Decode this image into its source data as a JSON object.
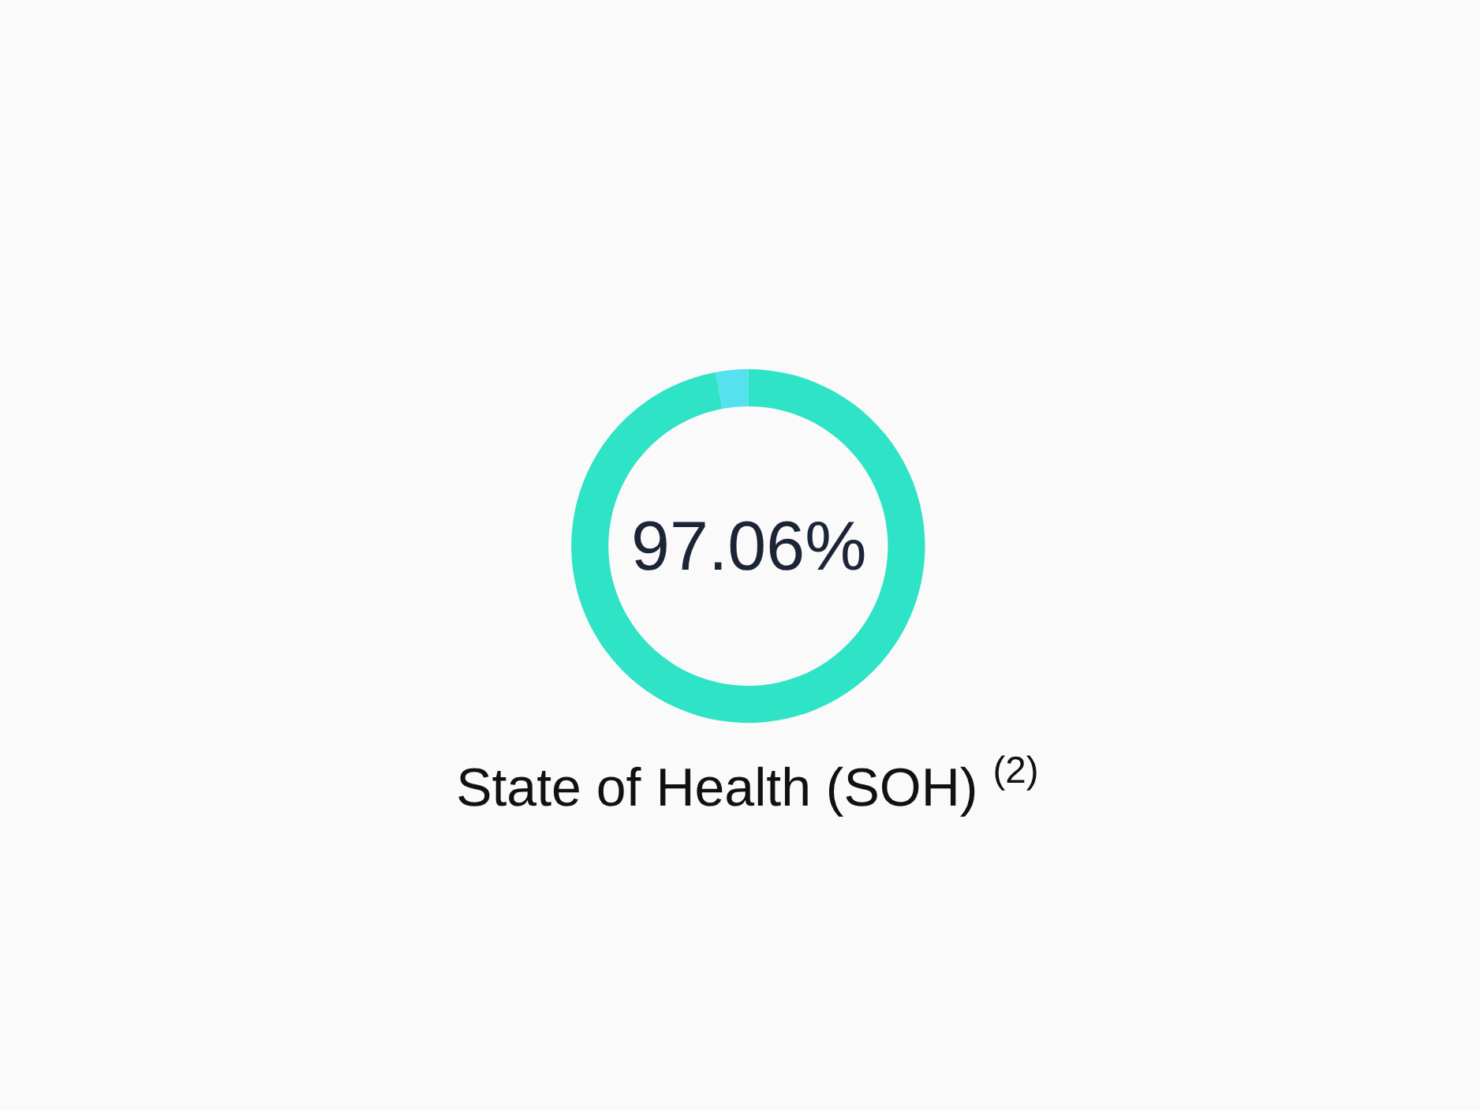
{
  "chart_data": {
    "type": "donut",
    "title": "State of Health (SOH) $^{(2)}$",
    "categories": [
      null,
      null
    ],
    "values": [
      97.06,
      2.94
    ],
    "colors": [
      "#2fe3c6",
      "#55e1ee"
    ],
    "value_labels": [
      "97.06%",
      null
    ]
  }
}
